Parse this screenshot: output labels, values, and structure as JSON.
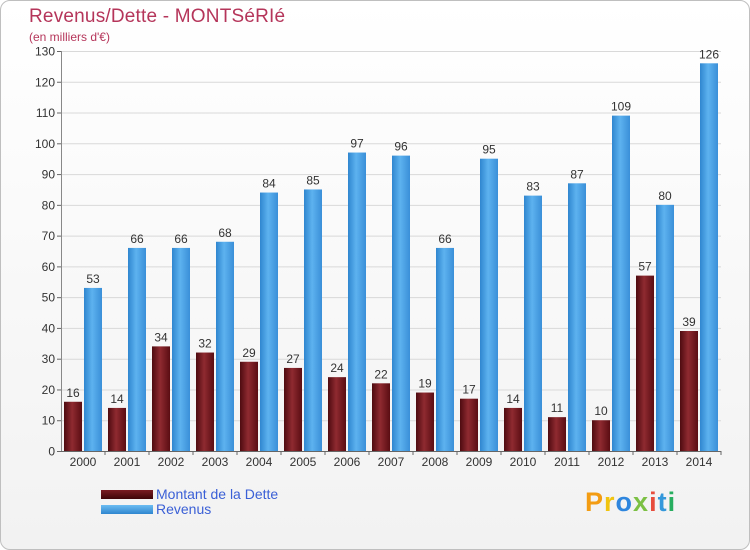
{
  "title": "Revenus/Dette - MONTSéRIé",
  "subtitle": "(en milliers d'€)",
  "logo": "Proxiti",
  "colors": {
    "dette": "#7a1c22",
    "revenus": "#4aa2e6",
    "title": "#b5355a"
  },
  "legend": [
    {
      "label": "Montant de la Dette",
      "color": "#6e1218"
    },
    {
      "label": "Revenus",
      "color": "#4aa2e6"
    }
  ],
  "chart_data": {
    "type": "bar",
    "title": "Revenus/Dette - MONTSéRIé",
    "ylabel": "(en milliers d'€)",
    "ylim": [
      0,
      130
    ],
    "yticks": [
      0,
      10,
      20,
      30,
      40,
      50,
      60,
      70,
      80,
      90,
      100,
      110,
      120,
      130
    ],
    "grid": true,
    "categories": [
      "2000",
      "2001",
      "2002",
      "2003",
      "2004",
      "2005",
      "2006",
      "2007",
      "2008",
      "2009",
      "2010",
      "2011",
      "2012",
      "2013",
      "2014"
    ],
    "series": [
      {
        "name": "Montant de la Dette",
        "values": [
          16,
          14,
          34,
          32,
          29,
          27,
          24,
          22,
          19,
          17,
          14,
          11,
          10,
          57,
          39
        ]
      },
      {
        "name": "Revenus",
        "values": [
          53,
          66,
          66,
          68,
          84,
          85,
          97,
          96,
          66,
          95,
          83,
          87,
          109,
          80,
          126
        ]
      }
    ]
  }
}
